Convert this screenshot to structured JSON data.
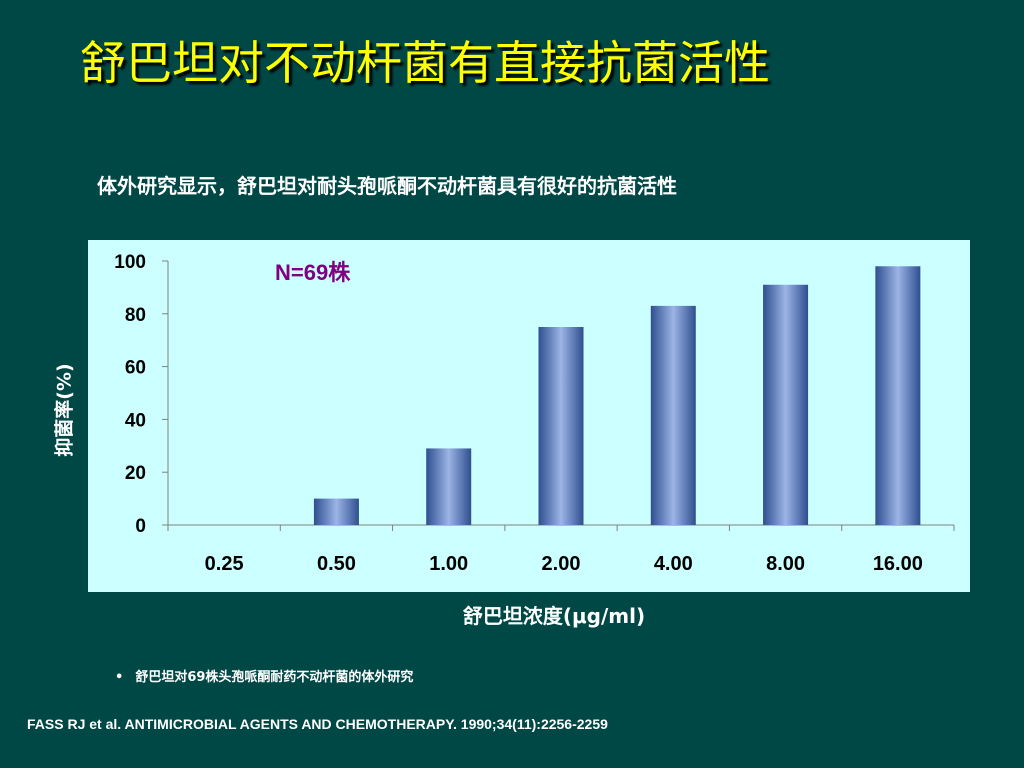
{
  "slide": {
    "title": "舒巴坦对不动杆菌有直接抗菌活性",
    "subtitle": "体外研究显示，舒巴坦对耐头孢哌酮不动杆菌具有很好的抗菌活性",
    "bullet_marker": "•",
    "bullet": "舒巴坦对69株头孢哌酮耐药不动杆菌的体外研究",
    "citation": "FASS RJ et al. ANTIMICROBIAL AGENTS AND CHEMOTHERAPY. 1990;34(11):2256-2259"
  },
  "colors": {
    "background": "#004846",
    "title": "#FFFF00",
    "panel": "#CCFFFF",
    "bar_dark": "#2E4F8F",
    "bar_light": "#9CB4E6",
    "annotation": "#800080",
    "axis": "#808080"
  },
  "chart_data": {
    "type": "bar",
    "categories": [
      "0.25",
      "0.50",
      "1.00",
      "2.00",
      "4.00",
      "8.00",
      "16.00"
    ],
    "values": [
      0,
      10,
      29,
      75,
      83,
      91,
      98
    ],
    "ylim": [
      0,
      100
    ],
    "yticks": [
      "0",
      "20",
      "40",
      "60",
      "80",
      "100"
    ],
    "xlabel": "舒巴坦浓度(μg/ml)",
    "ylabel": "抑菌率(%)",
    "annotation": "N=69株",
    "grid": false,
    "legend": "none"
  }
}
